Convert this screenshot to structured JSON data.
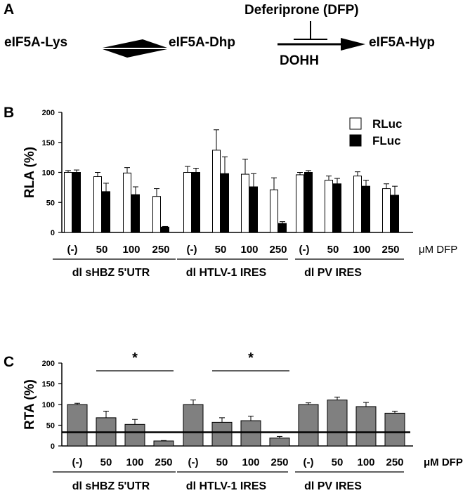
{
  "panel_a": {
    "letter": "A",
    "species": [
      "eIF5A-Lys",
      "eIF5A-Dhp",
      "eIF5A-Hyp"
    ],
    "inhibitor": "Deferiprone (DFP)",
    "enzyme": "DOHH"
  },
  "chart_data": [
    {
      "panel": "B",
      "type": "bar",
      "ylabel": "RLA (%)",
      "ylim": [
        0,
        200
      ],
      "yticks": [
        0,
        50,
        100,
        150,
        200
      ],
      "categories": [
        "(-)",
        "50",
        "100",
        "250",
        "(-)",
        "50",
        "100",
        "250",
        "(-)",
        "50",
        "100",
        "250"
      ],
      "unit_label": "μM DFP",
      "groups": [
        "dl sHBZ 5'UTR",
        "dl HTLV-1 IRES",
        "dl PV IRES"
      ],
      "legend": [
        "RLuc",
        "FLuc"
      ],
      "legend_position": "top-right",
      "series": [
        {
          "name": "RLuc",
          "color": "#ffffff",
          "values": [
            100,
            93,
            99,
            60,
            100,
            137,
            97,
            71,
            96,
            87,
            94,
            73
          ],
          "errors": [
            3,
            7,
            9,
            13,
            10,
            34,
            25,
            20,
            4,
            7,
            7,
            8
          ]
        },
        {
          "name": "FLuc",
          "color": "#000000",
          "values": [
            100,
            68,
            63,
            9,
            100,
            98,
            76,
            15,
            100,
            81,
            77,
            62
          ],
          "errors": [
            4,
            14,
            13,
            1,
            7,
            28,
            22,
            3,
            3,
            9,
            10,
            15
          ]
        }
      ]
    },
    {
      "panel": "C",
      "type": "bar",
      "ylabel": "RTA (%)",
      "ylim": [
        0,
        200
      ],
      "yticks": [
        0,
        50,
        100,
        150,
        200
      ],
      "categories": [
        "(-)",
        "50",
        "100",
        "250",
        "(-)",
        "50",
        "100",
        "250",
        "(-)",
        "50",
        "100",
        "250"
      ],
      "unit_label": "μM DFP",
      "groups": [
        "dl sHBZ 5'UTR",
        "dl HTLV-1 IRES",
        "dl PV IRES"
      ],
      "series": [
        {
          "color": "#808080",
          "values": [
            100,
            68,
            52,
            12,
            100,
            57,
            61,
            19,
            100,
            111,
            95,
            79
          ],
          "errors": [
            3,
            16,
            12,
            1,
            11,
            11,
            11,
            4,
            4,
            7,
            10,
            5
          ]
        }
      ],
      "reference_line": 33,
      "significance": [
        {
          "label": "*",
          "from": 1,
          "to": 3
        },
        {
          "label": "*",
          "from": 5,
          "to": 7
        }
      ]
    }
  ]
}
